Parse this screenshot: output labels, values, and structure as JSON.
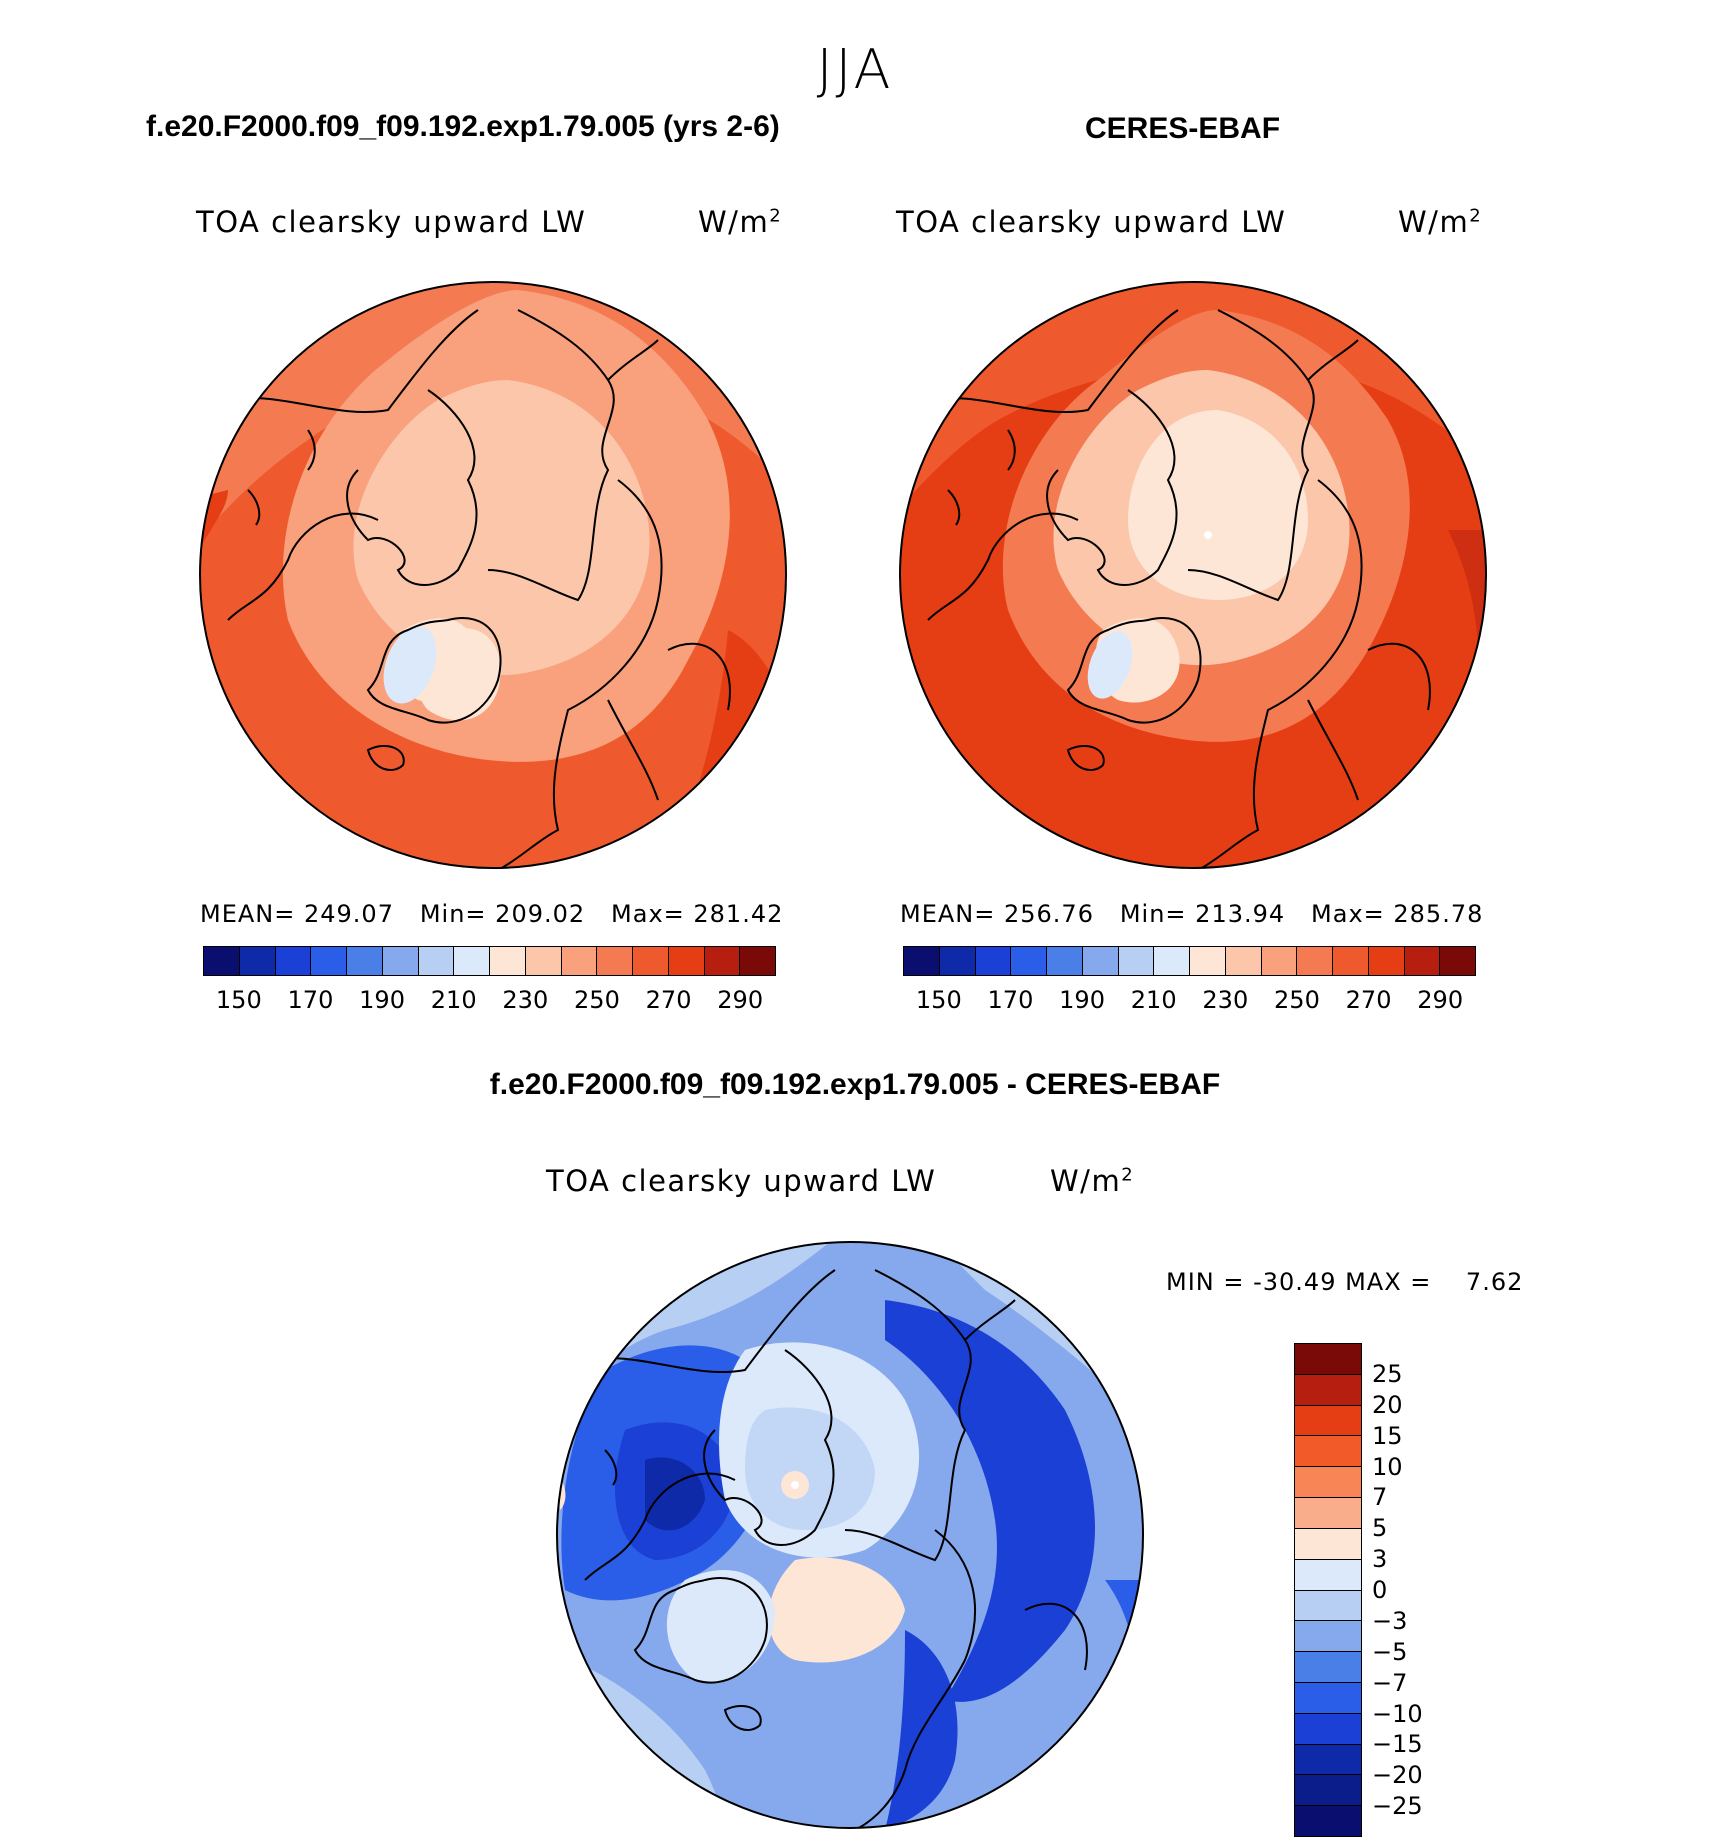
{
  "title": "JJA",
  "panels": [
    {
      "case_title": "f.e20.F2000.f09_f09.192.exp1.79.005 (yrs 2-6)",
      "var_name": "TOA clearsky upward LW",
      "units": "W/m",
      "units_sup": "2",
      "stats_text": "MEAN= 249.07   Min= 209.02   Max= 281.42",
      "ticks": [
        "150",
        "170",
        "190",
        "210",
        "230",
        "250",
        "270",
        "290"
      ]
    },
    {
      "case_title": "CERES-EBAF",
      "var_name": "TOA clearsky upward LW",
      "units": "W/m",
      "units_sup": "2",
      "stats_text": "MEAN= 256.76   Min= 213.94   Max= 285.78",
      "ticks": [
        "150",
        "170",
        "190",
        "210",
        "230",
        "250",
        "270",
        "290"
      ]
    }
  ],
  "diff": {
    "case_title": "f.e20.F2000.f09_f09.192.exp1.79.005 - CERES-EBAF",
    "var_name": "TOA clearsky upward LW",
    "units": "W/m",
    "units_sup": "2",
    "stats_text": "MIN = -30.49 MAX =    7.62",
    "ticks": [
      "25",
      "20",
      "15",
      "10",
      "7",
      "5",
      "3",
      "0",
      "−3",
      "−5",
      "−7",
      "−10",
      "−15",
      "−20",
      "−25"
    ]
  },
  "colors": {
    "abs_scale": [
      "#0a0e6e",
      "#0f2aa8",
      "#1a40d6",
      "#2a5ee8",
      "#4a7fe8",
      "#86a8ec",
      "#b7cff3",
      "#dce9fb",
      "#fde6d6",
      "#fbc6aa",
      "#f9a07c",
      "#f47a52",
      "#ee5a2e",
      "#e63e14",
      "#b61f10",
      "#7a0a08"
    ],
    "diff_scale": [
      "#7a0a08",
      "#b61f10",
      "#e63e14",
      "#f25a2a",
      "#f78556",
      "#f9ad8a",
      "#fde6d6",
      "#dce9fb",
      "#b7cff3",
      "#86a8ec",
      "#4a7fe8",
      "#2a5ee8",
      "#1a40d6",
      "#0f2aa8",
      "#0a1d8a",
      "#0a0e6e"
    ]
  }
}
